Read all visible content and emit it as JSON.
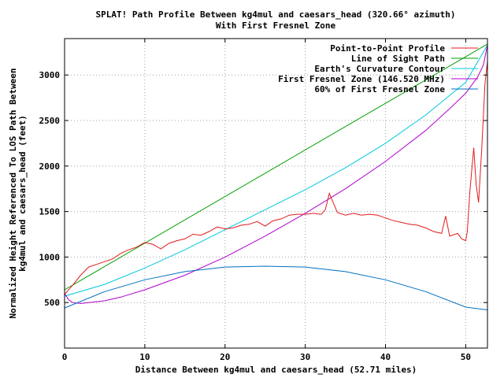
{
  "chart_data": {
    "type": "line",
    "title": "SPLAT! Path Profile Between kg4mul and caesars_head (320.66° azimuth)",
    "subtitle": "With First Fresnel Zone",
    "xlabel": "Distance Between kg4mul and caesars_head (52.71 miles)",
    "ylabel": "Normalized Height Referenced To LOS Path Between",
    "ylabel2": "kg4mul and caesars_head (feet)",
    "xlim": [
      0,
      52.71
    ],
    "ylim": [
      0,
      3400
    ],
    "x_ticks": [
      0,
      10,
      20,
      30,
      40,
      50
    ],
    "y_ticks": [
      500,
      1000,
      1500,
      2000,
      2500,
      3000
    ],
    "grid": true,
    "legend_position": "top-right",
    "series": [
      {
        "name": "Point-to-Point Profile",
        "color": "#e41a1c",
        "x": [
          0,
          1,
          2,
          3,
          4,
          5,
          6,
          7,
          8,
          9,
          10,
          11,
          12,
          13,
          14,
          15,
          16,
          17,
          18,
          19,
          20,
          21,
          22,
          23,
          24,
          25,
          26,
          27,
          28,
          29,
          30,
          31,
          32,
          32.5,
          33,
          34,
          35,
          36,
          37,
          38,
          39,
          40,
          41,
          42,
          43,
          44,
          45,
          46,
          47,
          47.5,
          48,
          49,
          49.5,
          50,
          50.2,
          50.5,
          50.8,
          51,
          51.3,
          51.6,
          52,
          52.4,
          52.71
        ],
        "y": [
          590,
          690,
          800,
          890,
          920,
          950,
          980,
          1040,
          1080,
          1110,
          1160,
          1140,
          1090,
          1150,
          1180,
          1200,
          1250,
          1240,
          1280,
          1330,
          1310,
          1320,
          1350,
          1360,
          1390,
          1340,
          1400,
          1420,
          1460,
          1470,
          1470,
          1480,
          1470,
          1520,
          1700,
          1490,
          1460,
          1480,
          1460,
          1470,
          1460,
          1430,
          1400,
          1380,
          1360,
          1350,
          1320,
          1280,
          1260,
          1450,
          1230,
          1260,
          1200,
          1180,
          1280,
          1700,
          2000,
          2200,
          1800,
          1600,
          2200,
          2900,
          3150
        ]
      },
      {
        "name": "Line of Sight Path",
        "color": "#00a000",
        "x": [
          0,
          52.71
        ],
        "y": [
          640,
          3340
        ]
      },
      {
        "name": "Earth's Curvature Contour",
        "color": "#00c8e0",
        "x": [
          0,
          5,
          10,
          15,
          20,
          25,
          30,
          35,
          40,
          45,
          50,
          52.71
        ],
        "y": [
          570,
          700,
          880,
          1080,
          1300,
          1520,
          1740,
          1980,
          2250,
          2560,
          2920,
          3330
        ]
      },
      {
        "name": "First Fresnel Zone (146.520 MHz)",
        "color": "#b000d0",
        "x": [
          0,
          0.5,
          1,
          2,
          3,
          5,
          7,
          10,
          15,
          20,
          25,
          30,
          35,
          40,
          45,
          48,
          50,
          51.5,
          52.2,
          52.71
        ],
        "y": [
          600,
          530,
          500,
          490,
          500,
          520,
          560,
          640,
          800,
          1000,
          1230,
          1480,
          1750,
          2050,
          2390,
          2630,
          2800,
          2980,
          3110,
          3330
        ]
      },
      {
        "name": "60% of First Fresnel Zone",
        "color": "#0070c0",
        "x": [
          0,
          5,
          10,
          15,
          20,
          25,
          30,
          35,
          40,
          45,
          50,
          52.71
        ],
        "y": [
          440,
          620,
          750,
          840,
          890,
          900,
          890,
          840,
          750,
          620,
          450,
          420
        ]
      }
    ]
  }
}
